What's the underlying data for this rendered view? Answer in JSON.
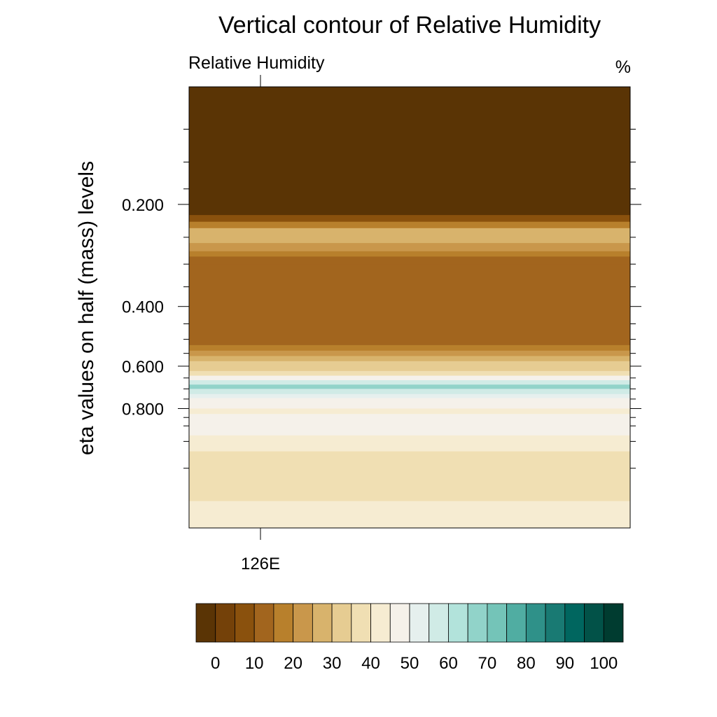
{
  "chart_data": {
    "type": "heatmap",
    "title": "Vertical contour of Relative Humidity",
    "subtitle_left": "Relative Humidity",
    "units": "%",
    "ylabel": "eta values on half (mass) levels",
    "xlabel": "",
    "x_ticks": [
      "126E"
    ],
    "y_ticks": [
      {
        "value": 0.2,
        "label": "0.200"
      },
      {
        "value": 0.4,
        "label": "0.400"
      },
      {
        "value": 0.6,
        "label": "0.600"
      },
      {
        "value": 0.8,
        "label": "0.800"
      }
    ],
    "y_range": [
      0.0,
      1.0
    ],
    "y_scale": "log",
    "y_inverted": true,
    "colorbar": {
      "levels": [
        0,
        5,
        10,
        15,
        20,
        25,
        30,
        35,
        40,
        45,
        50,
        55,
        60,
        65,
        70,
        75,
        80,
        85,
        90,
        95,
        100
      ],
      "labels": [
        "0",
        "10",
        "20",
        "30",
        "40",
        "50",
        "60",
        "70",
        "80",
        "90",
        "100"
      ],
      "colors": [
        "#5a3405",
        "#744109",
        "#8a510d",
        "#a2651e",
        "#b8802c",
        "#c9974b",
        "#d8b36c",
        "#e6cc92",
        "#f0dfb3",
        "#f6ecd2",
        "#f5f1ea",
        "#e6f0ee",
        "#d0ebe6",
        "#b2e3db",
        "#91d3c9",
        "#74c4b8",
        "#50ada2",
        "#2f9189",
        "#197a73",
        "#00665f",
        "#025248",
        "#003c30"
      ]
    },
    "profile": [
      {
        "eta_top": 0.09,
        "eta_bottom": 0.215,
        "rh": 2
      },
      {
        "eta_top": 0.215,
        "eta_bottom": 0.225,
        "rh": 12
      },
      {
        "eta_top": 0.225,
        "eta_bottom": 0.235,
        "rh": 22
      },
      {
        "eta_top": 0.235,
        "eta_bottom": 0.26,
        "rh": 32
      },
      {
        "eta_top": 0.26,
        "eta_bottom": 0.275,
        "rh": 27
      },
      {
        "eta_top": 0.275,
        "eta_bottom": 0.285,
        "rh": 22
      },
      {
        "eta_top": 0.285,
        "eta_bottom": 0.3,
        "rh": 17
      },
      {
        "eta_top": 0.3,
        "eta_bottom": 0.52,
        "rh": 15
      },
      {
        "eta_top": 0.52,
        "eta_bottom": 0.54,
        "rh": 20
      },
      {
        "eta_top": 0.54,
        "eta_bottom": 0.56,
        "rh": 27
      },
      {
        "eta_top": 0.56,
        "eta_bottom": 0.58,
        "rh": 32
      },
      {
        "eta_top": 0.58,
        "eta_bottom": 0.62,
        "rh": 37
      },
      {
        "eta_top": 0.62,
        "eta_bottom": 0.64,
        "rh": 42
      },
      {
        "eta_top": 0.64,
        "eta_bottom": 0.66,
        "rh": 52
      },
      {
        "eta_top": 0.66,
        "eta_bottom": 0.68,
        "rh": 62
      },
      {
        "eta_top": 0.68,
        "eta_bottom": 0.7,
        "rh": 72
      },
      {
        "eta_top": 0.7,
        "eta_bottom": 0.725,
        "rh": 62
      },
      {
        "eta_top": 0.725,
        "eta_bottom": 0.745,
        "rh": 57
      },
      {
        "eta_top": 0.745,
        "eta_bottom": 0.8,
        "rh": 52
      },
      {
        "eta_top": 0.8,
        "eta_bottom": 0.83,
        "rh": 47
      },
      {
        "eta_top": 0.83,
        "eta_bottom": 0.96,
        "rh": 52
      },
      {
        "eta_top": 0.96,
        "eta_bottom": 1.07,
        "rh": 47
      },
      {
        "eta_top": 1.07,
        "eta_bottom": 1.5,
        "rh": 42
      },
      {
        "eta_top": 1.5,
        "eta_bottom": 1.8,
        "rh": 47
      }
    ]
  }
}
